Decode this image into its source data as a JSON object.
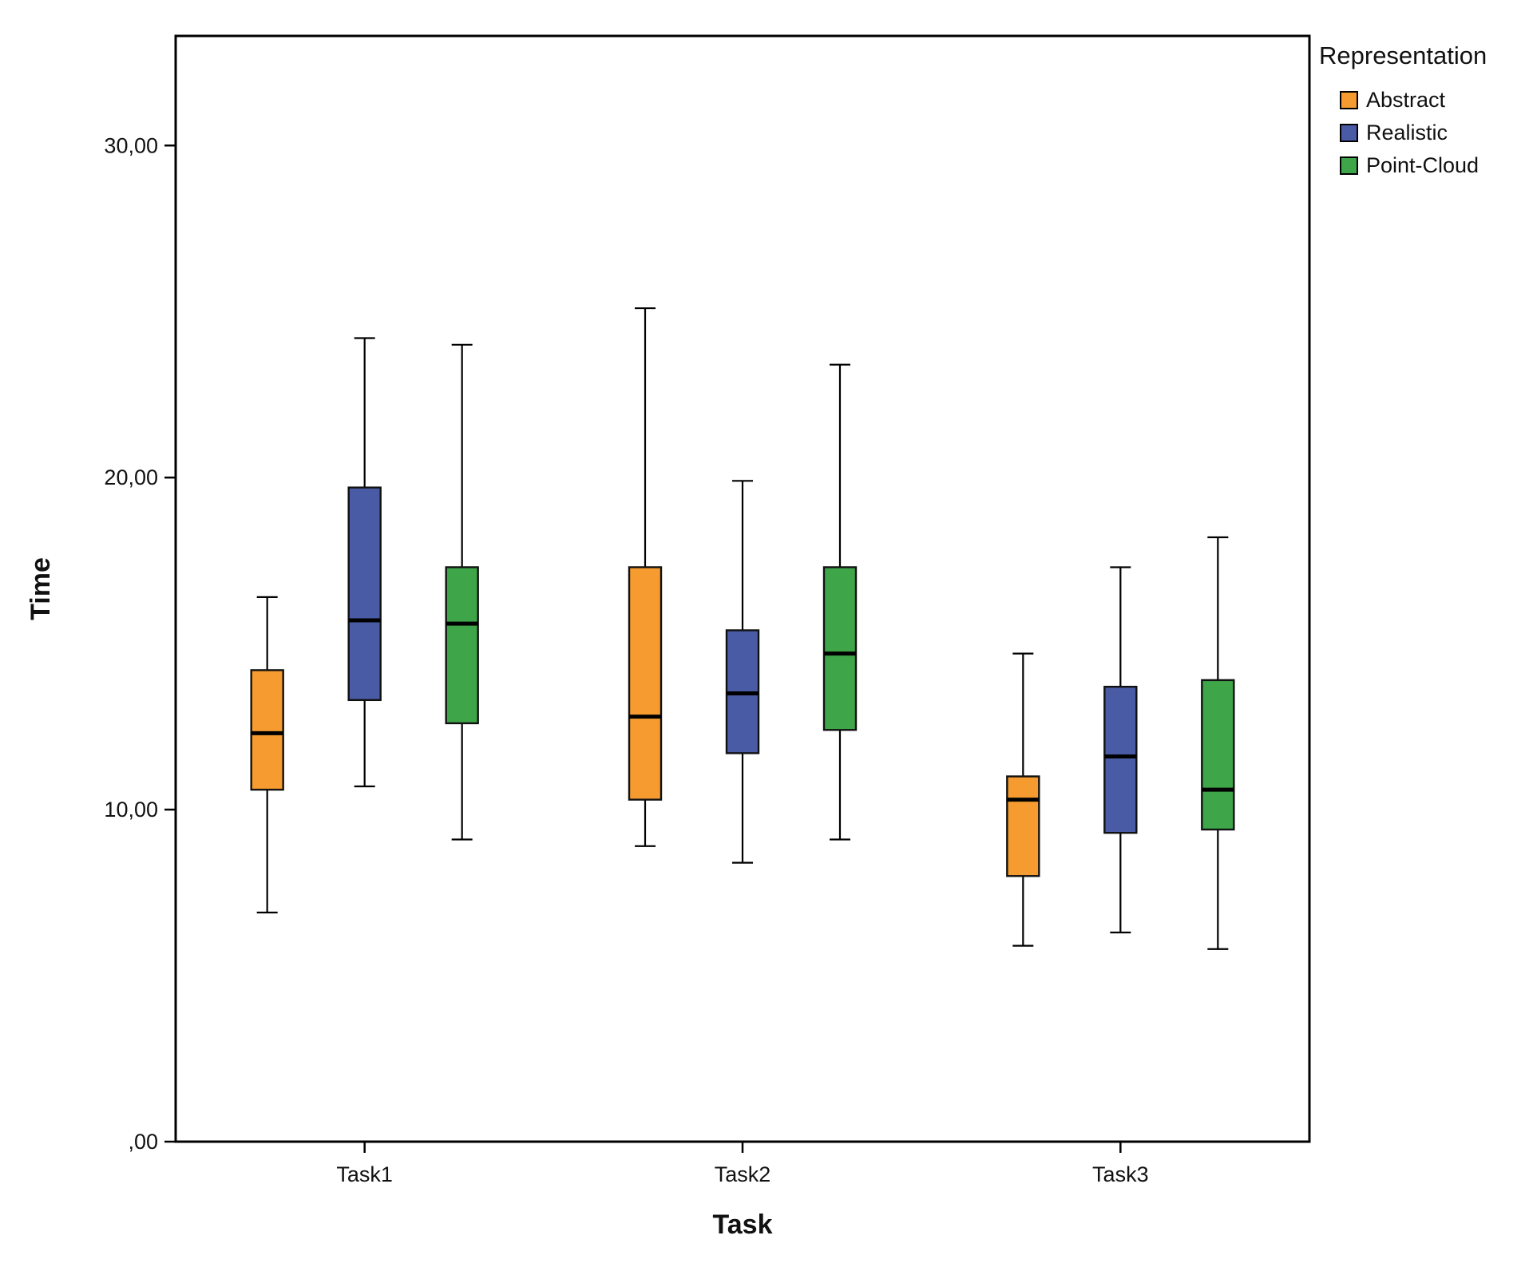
{
  "chart_data": {
    "type": "boxplot",
    "title": "",
    "xlabel": "Task",
    "ylabel": "Time",
    "ylim": [
      0,
      33.3
    ],
    "yticks": [
      {
        "value": 0,
        "label": ",00"
      },
      {
        "value": 10,
        "label": "10,00"
      },
      {
        "value": 20,
        "label": "20,00"
      },
      {
        "value": 30,
        "label": "30,00"
      }
    ],
    "categories": [
      "Task1",
      "Task2",
      "Task3"
    ],
    "legend_title": "Representation",
    "legend_position": "top-right-outside",
    "grid": false,
    "frame_color": "#000000",
    "series": [
      {
        "name": "Abstract",
        "color": "#F59B2F",
        "boxes": [
          {
            "min": 6.9,
            "q1": 10.6,
            "median": 12.3,
            "q3": 14.2,
            "max": 16.4
          },
          {
            "min": 8.9,
            "q1": 10.3,
            "median": 12.8,
            "q3": 17.3,
            "max": 25.1
          },
          {
            "min": 5.9,
            "q1": 8.0,
            "median": 10.3,
            "q3": 11.0,
            "max": 14.7
          }
        ]
      },
      {
        "name": "Realistic",
        "color": "#4A5BA5",
        "boxes": [
          {
            "min": 10.7,
            "q1": 13.3,
            "median": 15.7,
            "q3": 19.7,
            "max": 24.2
          },
          {
            "min": 8.4,
            "q1": 11.7,
            "median": 13.5,
            "q3": 15.4,
            "max": 19.9
          },
          {
            "min": 6.3,
            "q1": 9.3,
            "median": 11.6,
            "q3": 13.7,
            "max": 17.3
          }
        ]
      },
      {
        "name": "Point-Cloud",
        "color": "#3EA649",
        "boxes": [
          {
            "min": 9.1,
            "q1": 12.6,
            "median": 15.6,
            "q3": 17.3,
            "max": 24.0
          },
          {
            "min": 9.1,
            "q1": 12.4,
            "median": 14.7,
            "q3": 17.3,
            "max": 23.4
          },
          {
            "min": 5.8,
            "q1": 9.4,
            "median": 10.6,
            "q3": 13.9,
            "max": 18.2
          }
        ]
      }
    ]
  }
}
